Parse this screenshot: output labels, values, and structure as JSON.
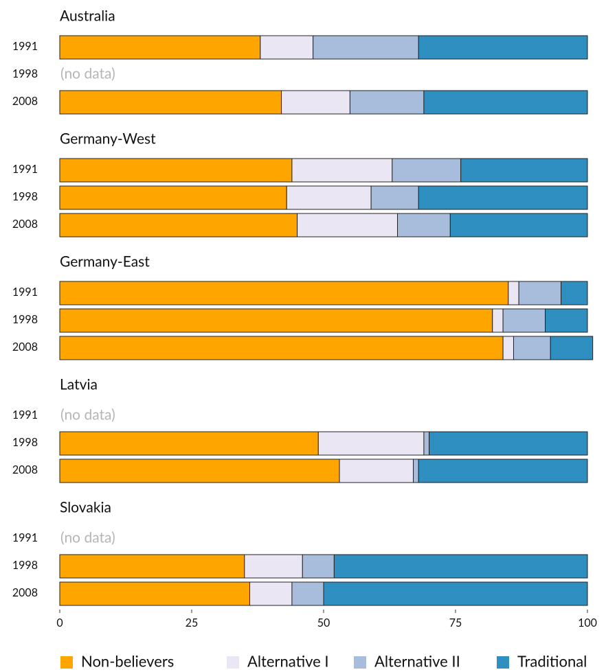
{
  "chart_data": {
    "type": "bar",
    "orientation": "horizontal",
    "stacked": true,
    "groups": [
      "Australia",
      "Germany-West",
      "Germany-East",
      "Latvia",
      "Slovakia"
    ],
    "categories": [
      "1991",
      "1998",
      "2008"
    ],
    "missing_label": "(no data)",
    "series": [
      {
        "name": "Non-believers",
        "color": "#ffa500",
        "values": [
          [
            38,
            null,
            42
          ],
          [
            44,
            43,
            45
          ],
          [
            85,
            82,
            84
          ],
          [
            null,
            49,
            53
          ],
          [
            null,
            35,
            36
          ]
        ]
      },
      {
        "name": "Alternative I",
        "color": "#ebe6f3",
        "values": [
          [
            10,
            null,
            13
          ],
          [
            19,
            16,
            19
          ],
          [
            2,
            2,
            2
          ],
          [
            null,
            20,
            14
          ],
          [
            null,
            11,
            8
          ]
        ]
      },
      {
        "name": "Alternative II",
        "color": "#a8bddb",
        "values": [
          [
            20,
            null,
            14
          ],
          [
            13,
            9,
            10
          ],
          [
            8,
            8,
            7
          ],
          [
            null,
            1,
            1
          ],
          [
            null,
            6,
            6
          ]
        ]
      },
      {
        "name": "Traditional",
        "color": "#2f8fc0",
        "values": [
          [
            32,
            null,
            31
          ],
          [
            24,
            32,
            26
          ],
          [
            5,
            8,
            8
          ],
          [
            null,
            30,
            32
          ],
          [
            null,
            48,
            50
          ]
        ]
      }
    ],
    "xlim": [
      0,
      100
    ],
    "xticks": [
      0,
      25,
      50,
      75,
      100
    ],
    "legend": "bottom"
  }
}
